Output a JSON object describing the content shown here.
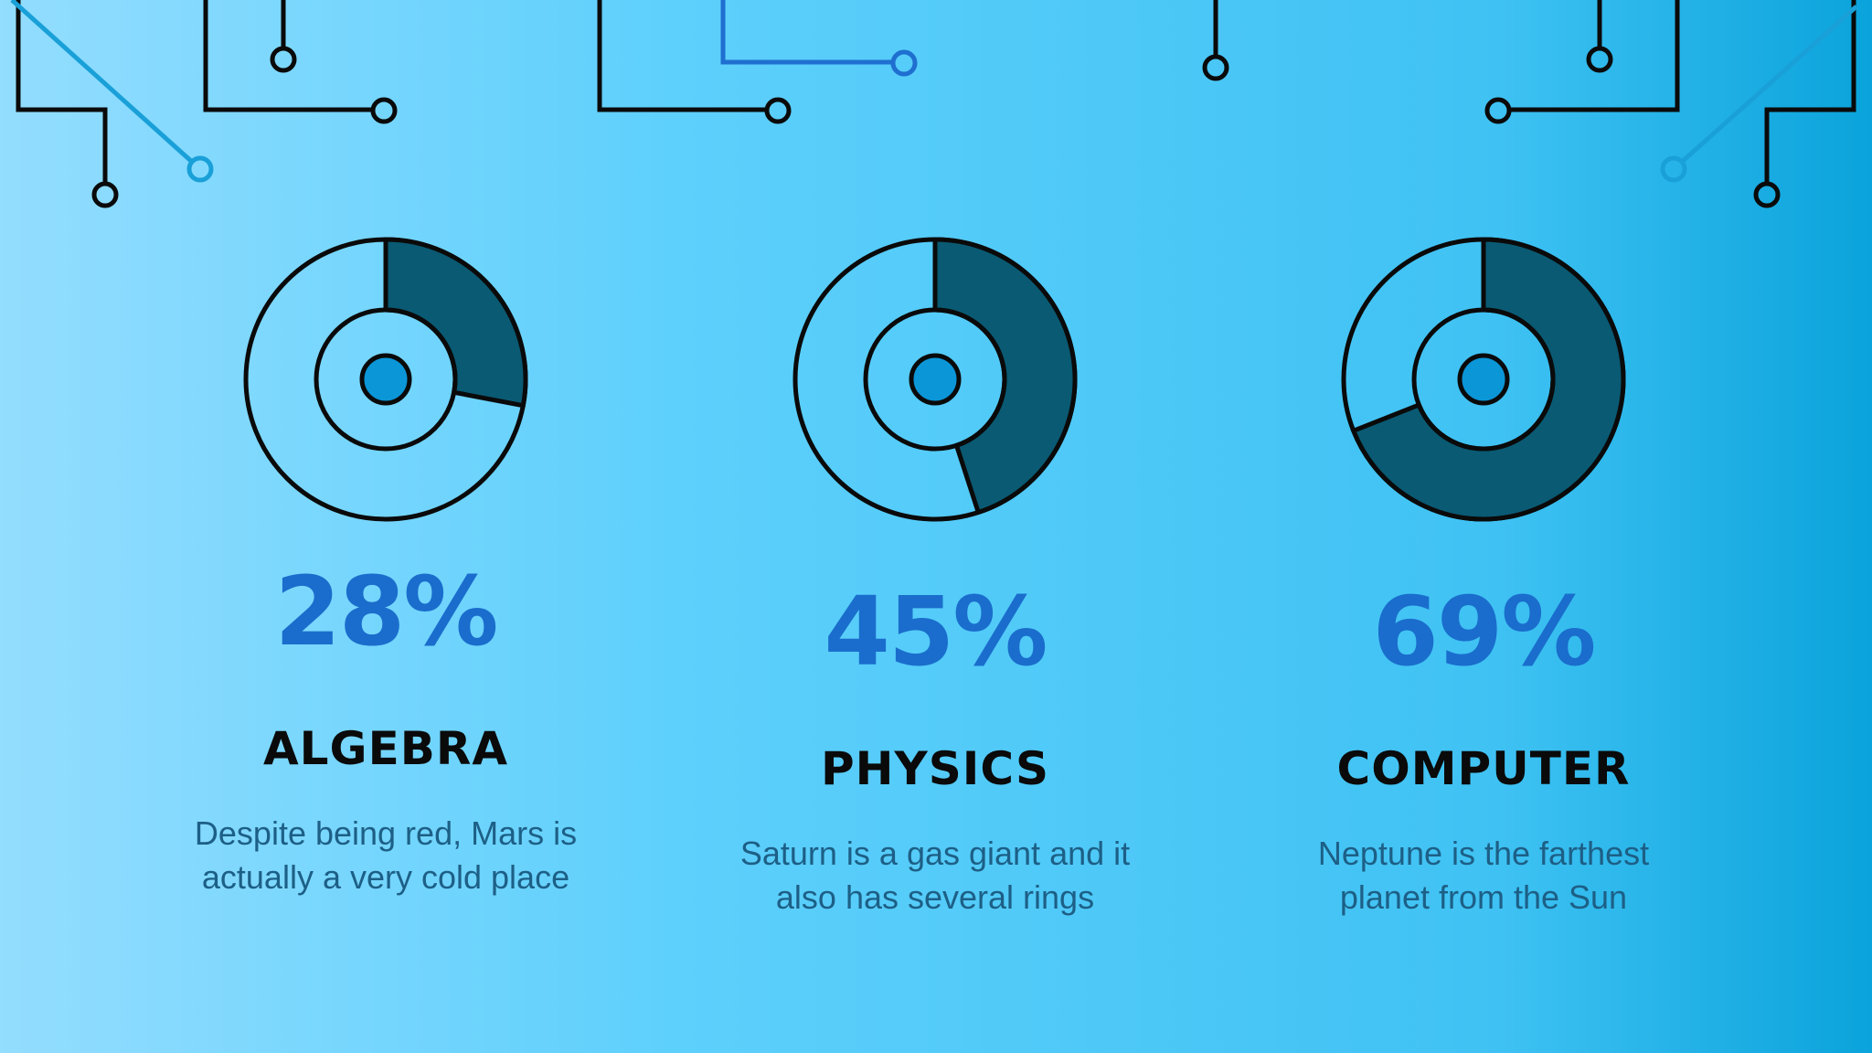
{
  "chart_data": [
    {
      "type": "donut",
      "title": "ALGEBRA",
      "values": [
        28
      ],
      "value_labels": [
        "28%"
      ],
      "color": "#0a5a73",
      "description": [
        "Despite being red, Mars is",
        "actually a very cold place"
      ]
    },
    {
      "type": "donut",
      "title": "PHYSICS",
      "values": [
        45
      ],
      "value_labels": [
        "45%"
      ],
      "color": "#0a5a73",
      "description": [
        "Saturn is a gas giant and it",
        "also has several rings"
      ]
    },
    {
      "type": "donut",
      "title": "COMPUTER",
      "values": [
        69
      ],
      "value_labels": [
        "69%"
      ],
      "color": "#0a5a73",
      "description": [
        "Neptune is the farthest",
        "planet from the Sun"
      ]
    }
  ]
}
